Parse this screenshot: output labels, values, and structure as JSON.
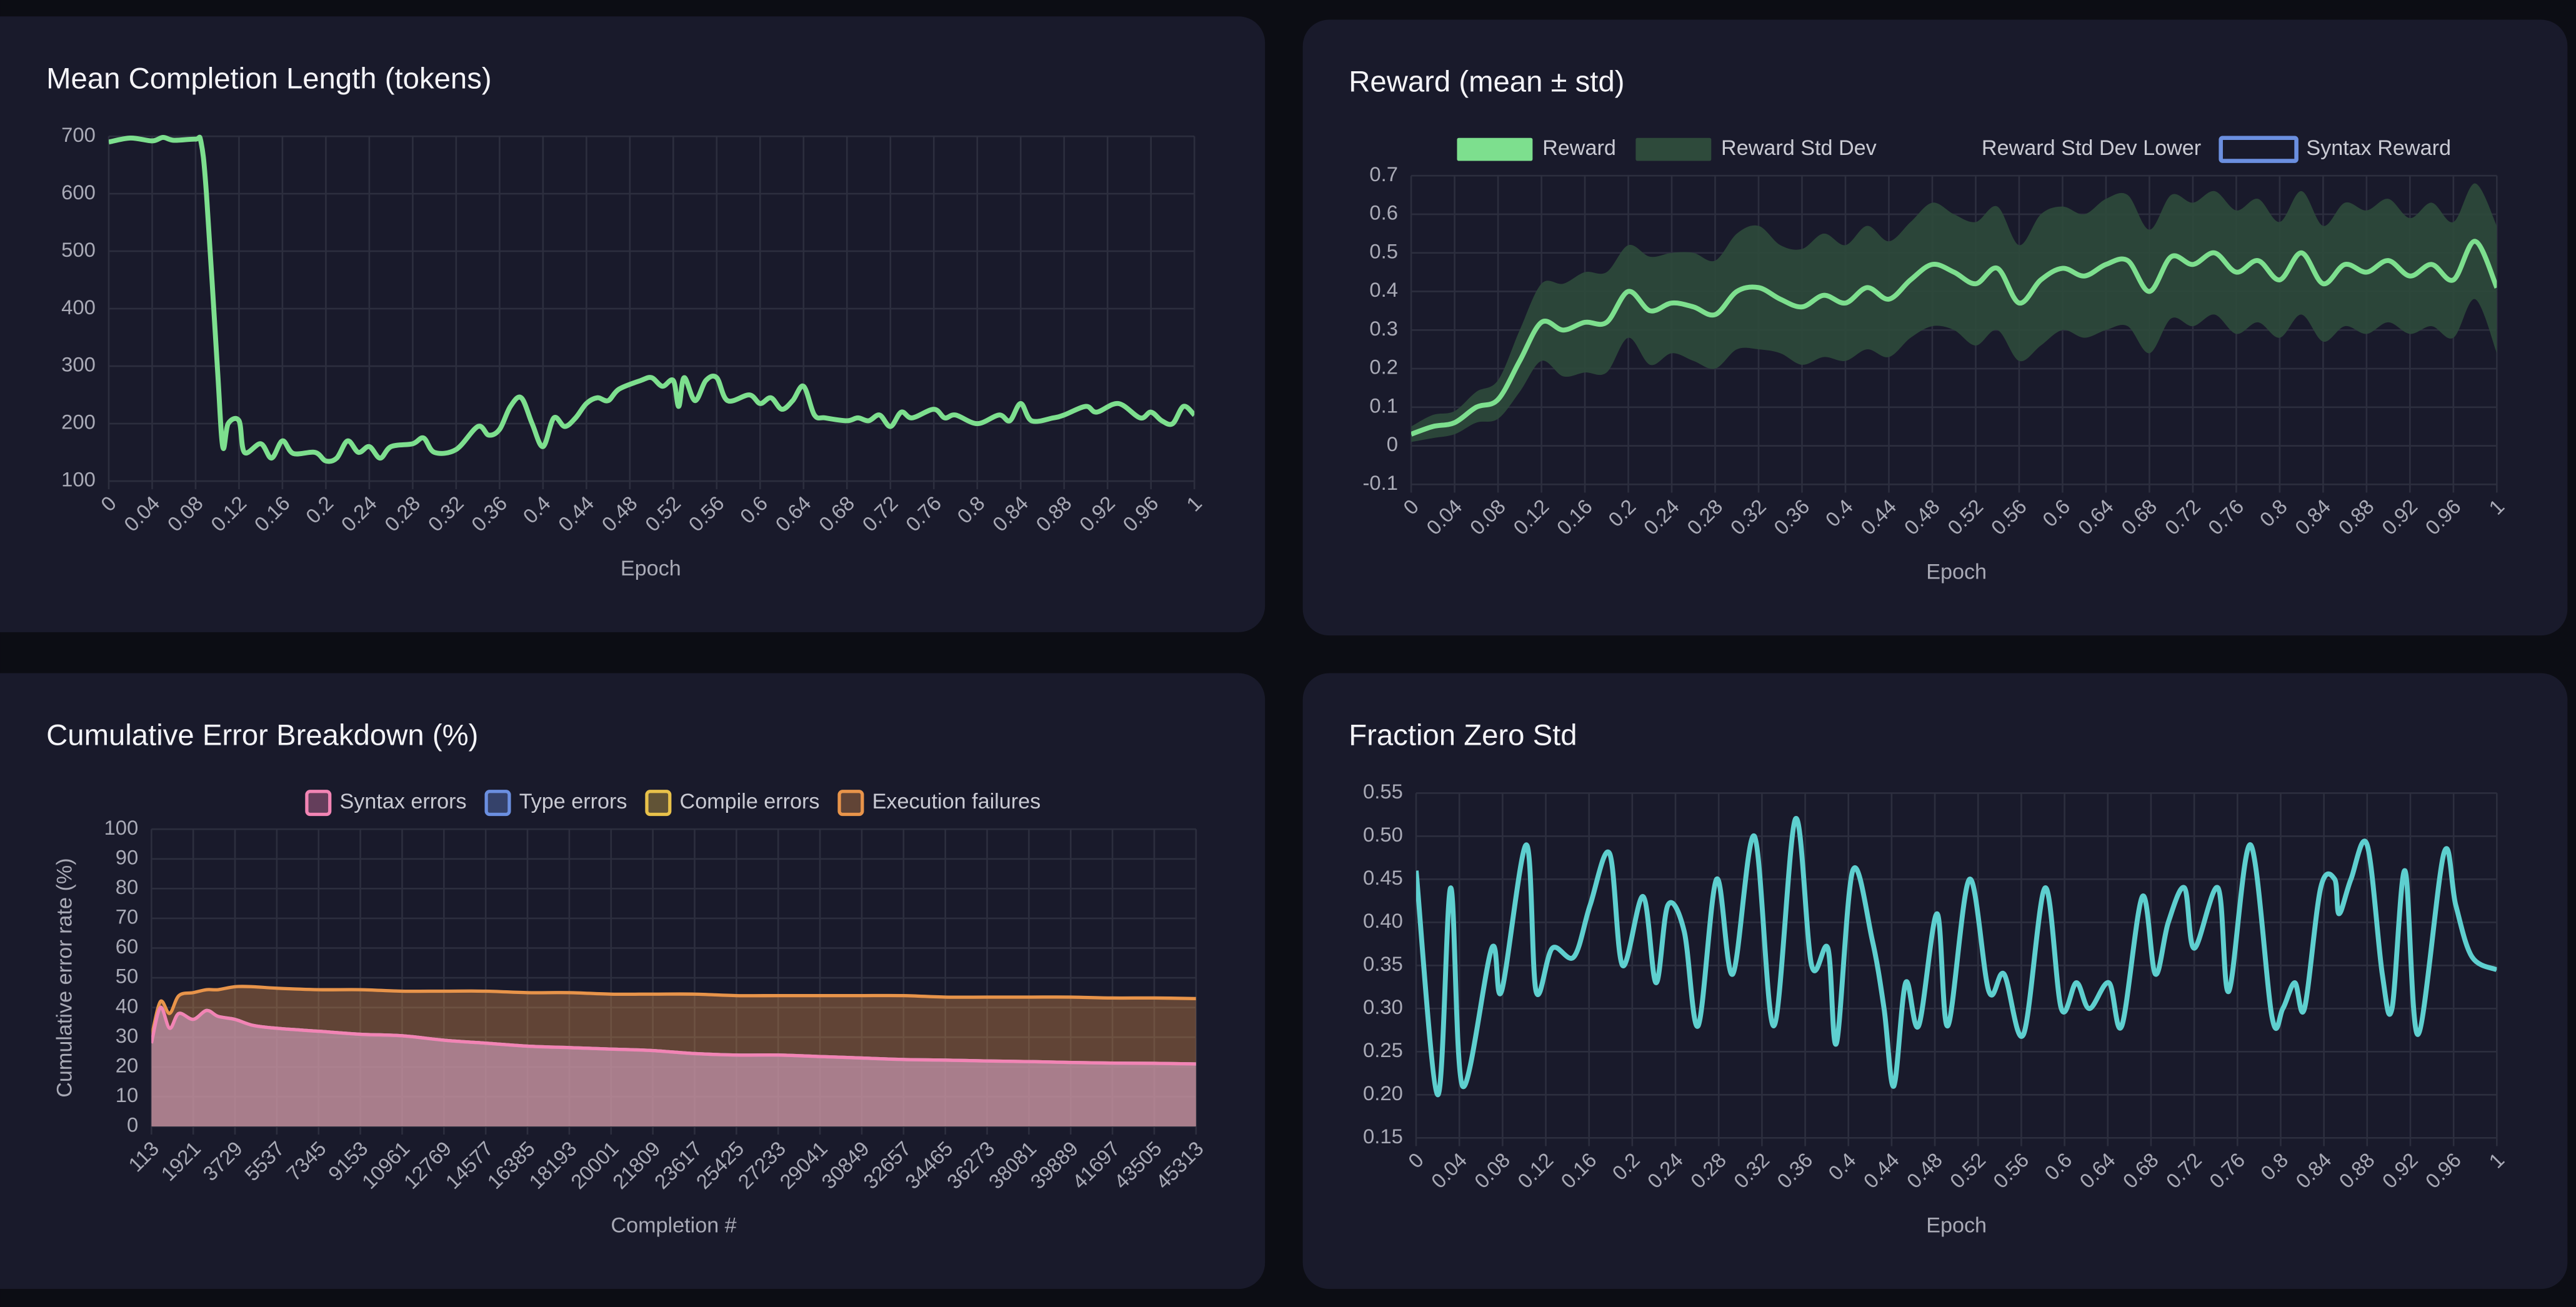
{
  "chart_data": [
    {
      "type": "line",
      "title": "Mean Completion Length (tokens)",
      "xlabel": "Epoch",
      "color": "#7ddf8e",
      "x": [
        0,
        0.02,
        0.04,
        0.05,
        0.06,
        0.08,
        0.085,
        0.09,
        0.1,
        0.105,
        0.11,
        0.12,
        0.125,
        0.14,
        0.15,
        0.16,
        0.17,
        0.19,
        0.2,
        0.21,
        0.22,
        0.23,
        0.24,
        0.25,
        0.26,
        0.28,
        0.29,
        0.3,
        0.32,
        0.34,
        0.35,
        0.36,
        0.37,
        0.38,
        0.39,
        0.4,
        0.41,
        0.42,
        0.43,
        0.44,
        0.45,
        0.46,
        0.47,
        0.49,
        0.5,
        0.51,
        0.52,
        0.525,
        0.53,
        0.54,
        0.55,
        0.56,
        0.57,
        0.59,
        0.6,
        0.61,
        0.62,
        0.63,
        0.64,
        0.65,
        0.66,
        0.68,
        0.69,
        0.7,
        0.71,
        0.72,
        0.73,
        0.74,
        0.76,
        0.77,
        0.78,
        0.8,
        0.82,
        0.83,
        0.84,
        0.85,
        0.87,
        0.88,
        0.9,
        0.91,
        0.93,
        0.95,
        0.96,
        0.97,
        0.98,
        0.99,
        1
      ],
      "values": [
        690,
        697,
        692,
        698,
        693,
        695,
        690,
        600,
        300,
        160,
        200,
        205,
        150,
        165,
        140,
        170,
        148,
        150,
        135,
        140,
        170,
        150,
        160,
        140,
        160,
        165,
        175,
        150,
        155,
        195,
        180,
        190,
        230,
        245,
        200,
        160,
        210,
        195,
        210,
        235,
        245,
        240,
        260,
        275,
        280,
        265,
        275,
        230,
        280,
        240,
        275,
        280,
        240,
        250,
        235,
        245,
        225,
        240,
        265,
        215,
        210,
        205,
        210,
        205,
        215,
        195,
        220,
        210,
        225,
        210,
        215,
        200,
        215,
        205,
        235,
        205,
        210,
        215,
        230,
        220,
        235,
        210,
        220,
        205,
        200,
        230,
        215
      ],
      "xlim": [
        0,
        1
      ],
      "xticks": [
        0,
        0.04,
        0.08,
        0.12,
        0.16,
        0.2,
        0.24,
        0.28,
        0.32,
        0.36,
        0.4,
        0.44,
        0.48,
        0.52,
        0.56,
        0.6,
        0.64,
        0.68,
        0.72,
        0.76,
        0.8,
        0.84,
        0.88,
        0.92,
        0.96,
        1
      ],
      "ylim": [
        100,
        700
      ],
      "yticks": [
        100,
        200,
        300,
        400,
        500,
        600,
        700
      ],
      "grid": true
    },
    {
      "type": "band",
      "title": "Reward (mean ± std)",
      "xlabel": "Epoch",
      "legend": "top",
      "x": [
        0,
        0.02,
        0.04,
        0.06,
        0.08,
        0.1,
        0.12,
        0.14,
        0.16,
        0.18,
        0.2,
        0.22,
        0.24,
        0.26,
        0.28,
        0.3,
        0.32,
        0.34,
        0.36,
        0.38,
        0.4,
        0.42,
        0.44,
        0.46,
        0.48,
        0.5,
        0.52,
        0.54,
        0.56,
        0.58,
        0.6,
        0.62,
        0.64,
        0.66,
        0.68,
        0.7,
        0.72,
        0.74,
        0.76,
        0.78,
        0.8,
        0.82,
        0.84,
        0.86,
        0.88,
        0.9,
        0.92,
        0.94,
        0.96,
        0.98,
        1
      ],
      "series": [
        {
          "name": "Reward",
          "color": "#7ddf8e",
          "values": [
            0.03,
            0.05,
            0.06,
            0.1,
            0.12,
            0.22,
            0.32,
            0.3,
            0.32,
            0.32,
            0.4,
            0.35,
            0.37,
            0.36,
            0.34,
            0.4,
            0.41,
            0.38,
            0.36,
            0.39,
            0.37,
            0.41,
            0.38,
            0.43,
            0.47,
            0.45,
            0.42,
            0.46,
            0.37,
            0.43,
            0.46,
            0.44,
            0.47,
            0.48,
            0.4,
            0.49,
            0.47,
            0.5,
            0.45,
            0.48,
            0.43,
            0.5,
            0.42,
            0.47,
            0.45,
            0.48,
            0.44,
            0.47,
            0.43,
            0.53,
            0.41
          ]
        },
        {
          "name": "Reward Std Dev",
          "color": "#2e4a3b",
          "values": [
            0.05,
            0.08,
            0.09,
            0.14,
            0.17,
            0.3,
            0.42,
            0.42,
            0.45,
            0.45,
            0.52,
            0.49,
            0.5,
            0.5,
            0.48,
            0.55,
            0.57,
            0.52,
            0.51,
            0.55,
            0.52,
            0.57,
            0.53,
            0.58,
            0.63,
            0.6,
            0.58,
            0.62,
            0.52,
            0.6,
            0.62,
            0.6,
            0.64,
            0.65,
            0.56,
            0.65,
            0.63,
            0.66,
            0.61,
            0.64,
            0.58,
            0.66,
            0.57,
            0.63,
            0.61,
            0.64,
            0.59,
            0.63,
            0.58,
            0.68,
            0.57
          ]
        },
        {
          "name": "Reward Std Dev Lower",
          "color": "transparent",
          "values": [
            0.01,
            0.02,
            0.03,
            0.06,
            0.07,
            0.14,
            0.22,
            0.18,
            0.19,
            0.19,
            0.28,
            0.21,
            0.24,
            0.22,
            0.2,
            0.25,
            0.25,
            0.24,
            0.21,
            0.23,
            0.22,
            0.25,
            0.23,
            0.28,
            0.31,
            0.3,
            0.26,
            0.3,
            0.22,
            0.26,
            0.3,
            0.28,
            0.3,
            0.31,
            0.24,
            0.33,
            0.31,
            0.34,
            0.29,
            0.32,
            0.28,
            0.34,
            0.27,
            0.31,
            0.29,
            0.32,
            0.29,
            0.31,
            0.28,
            0.38,
            0.24
          ]
        },
        {
          "name": "Syntax Reward",
          "color": "#6b8fe0",
          "values": [
            null,
            null,
            null,
            null,
            null,
            null,
            null,
            null,
            null,
            null,
            null,
            null,
            null,
            null,
            null,
            null,
            null,
            null,
            null,
            null,
            null,
            null,
            null,
            null,
            null,
            null,
            null,
            null,
            null,
            null,
            null,
            null,
            null,
            null,
            null,
            null,
            null,
            null,
            null,
            null,
            null,
            null,
            null,
            null,
            null,
            null,
            null,
            null,
            null,
            null,
            null
          ]
        }
      ],
      "xlim": [
        0,
        1
      ],
      "xticks": [
        0,
        0.04,
        0.08,
        0.12,
        0.16,
        0.2,
        0.24,
        0.28,
        0.32,
        0.36,
        0.4,
        0.44,
        0.48,
        0.52,
        0.56,
        0.6,
        0.64,
        0.68,
        0.72,
        0.76,
        0.8,
        0.84,
        0.88,
        0.92,
        0.96,
        1
      ],
      "ylim": [
        -0.1,
        0.7
      ],
      "yticks": [
        -0.1,
        0,
        0.1,
        0.2,
        0.3,
        0.4,
        0.5,
        0.6,
        0.7
      ],
      "grid": true
    },
    {
      "type": "area",
      "stacked": true,
      "title": "Cumulative Error Breakdown (%)",
      "xlabel": "Completion #",
      "ylabel": "Cumulative error rate (%)",
      "legend": "top",
      "x": [
        113,
        500,
        900,
        1300,
        1921,
        2500,
        3000,
        3729,
        4500,
        5537,
        7345,
        9153,
        10961,
        12769,
        14577,
        16385,
        18193,
        20001,
        21809,
        23617,
        25425,
        27233,
        29041,
        30849,
        32657,
        34465,
        36273,
        38081,
        39889,
        41697,
        43505,
        45313
      ],
      "series": [
        {
          "name": "Syntax errors",
          "color": "#f284b4",
          "values": [
            28,
            40,
            33,
            38,
            36,
            39,
            37,
            36,
            34,
            33,
            32,
            31,
            30.5,
            29,
            28,
            27,
            26.5,
            26,
            25.5,
            24.5,
            24,
            24,
            23.5,
            23,
            22.5,
            22.3,
            22,
            21.8,
            21.5,
            21.3,
            21.2,
            21
          ]
        },
        {
          "name": "Type errors",
          "color": "#6b8fe0",
          "values": [
            0,
            0,
            0,
            0,
            0,
            0,
            0,
            0,
            0,
            0,
            0,
            0,
            0,
            0,
            0,
            0,
            0,
            0,
            0,
            0,
            0,
            0,
            0,
            0,
            0,
            0,
            0,
            0,
            0,
            0,
            0,
            0
          ]
        },
        {
          "name": "Compile errors",
          "color": "#e8c14a",
          "values": [
            0,
            0,
            0,
            0,
            0,
            0,
            0,
            0,
            0,
            0,
            0,
            0,
            0,
            0,
            0,
            0,
            0,
            0,
            0,
            0,
            0,
            0,
            0,
            0,
            0,
            0,
            0,
            0,
            0,
            0,
            0,
            0
          ]
        },
        {
          "name": "Execution failures",
          "color": "#e8944a",
          "values": [
            2,
            2,
            5,
            6,
            9,
            7,
            9,
            11,
            13,
            13.5,
            14,
            15,
            15,
            16.5,
            17.5,
            18,
            18.5,
            18.5,
            19,
            20,
            20,
            20,
            20.5,
            21,
            21.5,
            21.2,
            21.5,
            21.7,
            22,
            21.9,
            22,
            22
          ]
        }
      ],
      "xlim": [
        113,
        45313
      ],
      "xticks": [
        113,
        1921,
        3729,
        5537,
        7345,
        9153,
        10961,
        12769,
        14577,
        16385,
        18193,
        20001,
        21809,
        23617,
        25425,
        27233,
        29041,
        30849,
        32657,
        34465,
        36273,
        38081,
        39889,
        41697,
        43505,
        45313
      ],
      "ylim": [
        0,
        100
      ],
      "yticks": [
        0,
        10,
        20,
        30,
        40,
        50,
        60,
        70,
        80,
        90,
        100
      ],
      "grid": true
    },
    {
      "type": "line",
      "title": "Fraction Zero Std",
      "xlabel": "Epoch",
      "color": "#5ecfcf",
      "x": [
        0,
        0.02,
        0.032,
        0.043,
        0.07,
        0.079,
        0.102,
        0.111,
        0.126,
        0.146,
        0.161,
        0.179,
        0.191,
        0.21,
        0.222,
        0.233,
        0.248,
        0.261,
        0.278,
        0.293,
        0.313,
        0.331,
        0.351,
        0.366,
        0.381,
        0.389,
        0.404,
        0.422,
        0.433,
        0.442,
        0.453,
        0.465,
        0.482,
        0.492,
        0.512,
        0.53,
        0.544,
        0.562,
        0.582,
        0.597,
        0.611,
        0.623,
        0.641,
        0.653,
        0.672,
        0.684,
        0.696,
        0.711,
        0.72,
        0.742,
        0.752,
        0.772,
        0.792,
        0.802,
        0.813,
        0.822,
        0.837,
        0.85,
        0.854,
        0.865,
        0.88,
        0.894,
        0.903,
        0.915,
        0.927,
        0.951,
        0.962,
        0.977,
        1
      ],
      "values": [
        0.46,
        0.2,
        0.44,
        0.21,
        0.37,
        0.32,
        0.49,
        0.32,
        0.37,
        0.36,
        0.42,
        0.48,
        0.35,
        0.43,
        0.33,
        0.42,
        0.39,
        0.28,
        0.45,
        0.34,
        0.5,
        0.28,
        0.52,
        0.35,
        0.37,
        0.26,
        0.46,
        0.38,
        0.3,
        0.21,
        0.33,
        0.28,
        0.41,
        0.28,
        0.45,
        0.32,
        0.34,
        0.27,
        0.44,
        0.3,
        0.33,
        0.3,
        0.33,
        0.28,
        0.43,
        0.34,
        0.4,
        0.44,
        0.37,
        0.44,
        0.32,
        0.49,
        0.29,
        0.3,
        0.33,
        0.3,
        0.44,
        0.45,
        0.41,
        0.45,
        0.49,
        0.34,
        0.3,
        0.46,
        0.27,
        0.48,
        0.42,
        0.36,
        0.345
      ],
      "xlim": [
        0,
        1
      ],
      "xticks": [
        0,
        0.04,
        0.08,
        0.12,
        0.16,
        0.2,
        0.24,
        0.28,
        0.32,
        0.36,
        0.4,
        0.44,
        0.48,
        0.52,
        0.56,
        0.6,
        0.64,
        0.68,
        0.72,
        0.76,
        0.8,
        0.84,
        0.88,
        0.92,
        0.96,
        1
      ],
      "ylim": [
        0.15,
        0.55
      ],
      "yticks": [
        0.15,
        {
          "value": 0.2,
          "label": "0.20"
        },
        0.25,
        {
          "value": 0.3,
          "label": "0.30"
        },
        0.35,
        {
          "value": 0.4,
          "label": "0.40"
        },
        0.45,
        {
          "value": 0.5,
          "label": "0.50"
        },
        0.55
      ],
      "grid": true
    }
  ]
}
